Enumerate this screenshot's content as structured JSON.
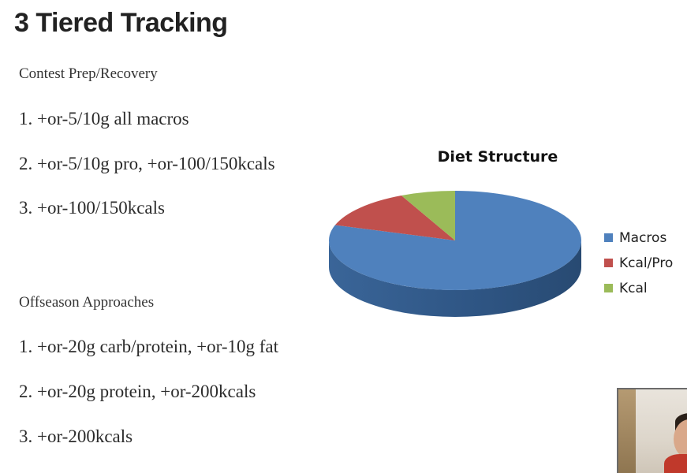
{
  "slide": {
    "title": "3 Tiered Tracking"
  },
  "contest_prep": {
    "heading": "Contest Prep/Recovery",
    "items": [
      "1. +or-5/10g all macros",
      "2. +or-5/10g pro, +or-100/150kcals",
      "3. +or-100/150kcals"
    ]
  },
  "offseason": {
    "heading": "Offseason Approaches",
    "items": [
      "1. +or-20g carb/protein, +or-10g fat",
      "2. +or-20g protein, +or-200kcals",
      "3. +or-200kcals"
    ]
  },
  "webcam": {
    "icon": "webcam-video-thumbnail"
  },
  "chart_data": {
    "type": "pie",
    "title": "Diet Structure",
    "style": "3d",
    "legend_position": "right",
    "categories": [
      "Macros",
      "Kcal/Pro",
      "Kcal"
    ],
    "values": [
      80,
      13,
      7
    ],
    "colors": [
      "#4f81bd",
      "#c0504d",
      "#9bbb59"
    ]
  }
}
